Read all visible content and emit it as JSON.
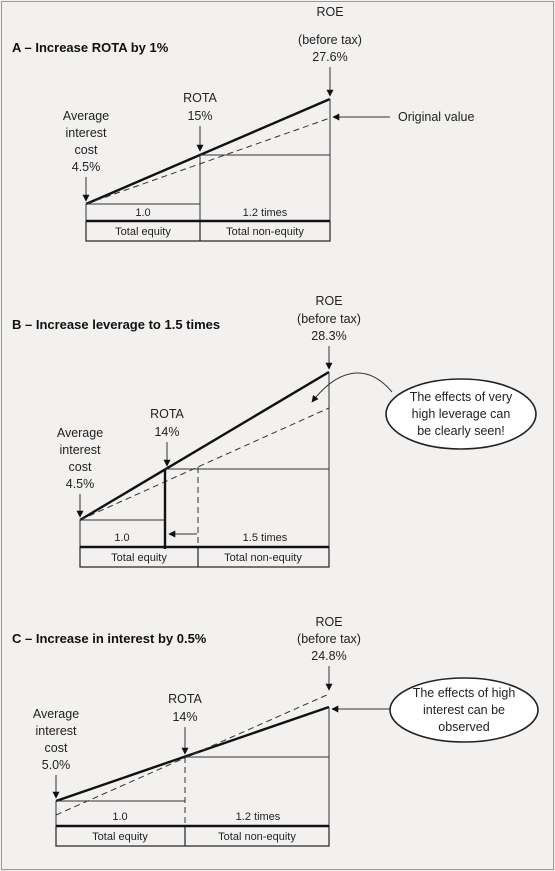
{
  "panels": [
    {
      "title": "A – Increase ROTA by 1%",
      "roe_label": [
        "ROE",
        "(before tax)",
        "27.6%"
      ],
      "rota_label": [
        "ROTA",
        "15%"
      ],
      "interest_label": [
        "Average",
        "interest",
        "cost",
        "4.5%"
      ],
      "equity_value": "1.0",
      "nonequity_value": "1.2 times",
      "equity_label": "Total equity",
      "nonequity_label": "Total non-equity",
      "note": "Original value"
    },
    {
      "title": "B – Increase leverage to 1.5 times",
      "roe_label": [
        "ROE",
        "(before tax)",
        "28.3%"
      ],
      "rota_label": [
        "ROTA",
        "14%"
      ],
      "interest_label": [
        "Average",
        "interest",
        "cost",
        "4.5%"
      ],
      "equity_value": "1.0",
      "nonequity_value": "1.5 times",
      "equity_label": "Total equity",
      "nonequity_label": "Total non-equity",
      "note": [
        "The effects of very",
        "high leverage can",
        "be clearly seen!"
      ]
    },
    {
      "title": "C – Increase in interest by 0.5%",
      "roe_label": [
        "ROE",
        "(before tax)",
        "24.8%"
      ],
      "rota_label": [
        "ROTA",
        "14%"
      ],
      "interest_label": [
        "Average",
        "interest",
        "cost",
        "5.0%"
      ],
      "equity_value": "1.0",
      "nonequity_value": "1.2 times",
      "equity_label": "Total equity",
      "nonequity_label": "Total non-equity",
      "note": [
        "The effects of high",
        "interest can be",
        "observed"
      ]
    }
  ]
}
